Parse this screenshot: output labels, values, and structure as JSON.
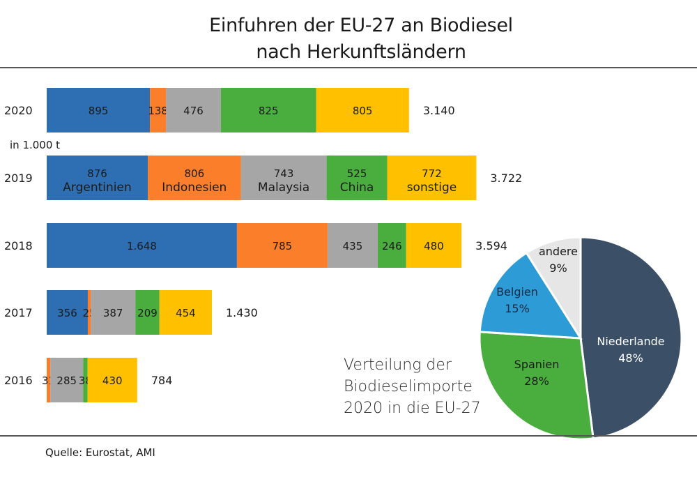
{
  "title_line1": "Einfuhren der EU-27 an Biodiesel",
  "title_line2": "nach Herkunftsländern",
  "unit": "in 1.000 t",
  "source": "Quelle: Eurostat, AMI",
  "pie_caption": [
    "Verteilung der",
    "Biodieselimporte",
    "2020 in die EU-27"
  ],
  "chart_data": [
    {
      "type": "bar",
      "orientation": "horizontal-stacked",
      "title": "Einfuhren der EU-27 an Biodiesel nach Herkunftsländern",
      "unit": "in 1.000 t",
      "categories": [
        "2020",
        "2019",
        "2018",
        "2017",
        "2016"
      ],
      "series": [
        {
          "name": "Argentinien",
          "color": "#2e6fb3",
          "values": [
            895,
            876,
            1648,
            356,
            0
          ],
          "labels": [
            "895",
            "876",
            "1.648",
            "356",
            ""
          ]
        },
        {
          "name": "Indonesien",
          "color": "#fb7f2a",
          "values": [
            138,
            806,
            785,
            25,
            31
          ],
          "labels": [
            "138",
            "806",
            "785",
            "25",
            "31"
          ]
        },
        {
          "name": "Malaysia",
          "color": "#a6a6a6",
          "values": [
            476,
            743,
            435,
            387,
            285
          ],
          "labels": [
            "476",
            "743",
            "435",
            "387",
            "285"
          ]
        },
        {
          "name": "China",
          "color": "#4aae3f",
          "values": [
            825,
            525,
            246,
            209,
            38
          ],
          "labels": [
            "825",
            "525",
            "246",
            "209",
            "38"
          ]
        },
        {
          "name": "sonstige",
          "color": "#ffc000",
          "values": [
            805,
            772,
            480,
            454,
            430
          ],
          "labels": [
            "805",
            "772",
            "480",
            "454",
            "430"
          ]
        }
      ],
      "totals": [
        "3.140",
        "3.722",
        "3.594",
        "1.430",
        "784"
      ],
      "legend_inline_in_category": "2019",
      "xlim": [
        0,
        4000
      ]
    },
    {
      "type": "pie",
      "title": "Verteilung der Biodieselimporte 2020 in die EU-27",
      "slices": [
        {
          "label": "Niederlande",
          "value": 48,
          "display": "48%",
          "color": "#3b4f66",
          "text_color": "#ffffff"
        },
        {
          "label": "Spanien",
          "value": 28,
          "display": "28%",
          "color": "#4aae3f",
          "text_color": "#1a1a1a"
        },
        {
          "label": "Belgien",
          "value": 15,
          "display": "15%",
          "color": "#2d9bd6",
          "text_color": "#1a2a44"
        },
        {
          "label": "andere",
          "value": 9,
          "display": "9%",
          "color": "#e6e6e6",
          "text_color": "#1a1a1a"
        }
      ]
    }
  ]
}
